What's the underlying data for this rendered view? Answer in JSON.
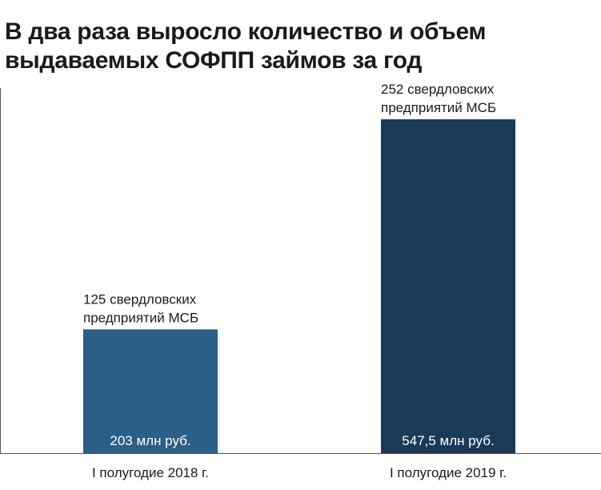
{
  "title": "В два раза выросло количество и объем выдаваемых СОФПП займов за год",
  "chart_data": {
    "type": "bar",
    "title": "В два раза выросло количество и объем выдаваемых СОФПП займов за год",
    "xlabel": "",
    "ylabel": "",
    "categories": [
      "I полугодие 2018 г.",
      "I полугодие 2019 г."
    ],
    "series": [
      {
        "values": [
          203,
          547.5
        ],
        "value_labels": [
          "203 млн руб.",
          "547,5 млн руб."
        ],
        "annotations": [
          [
            "125 свердловских",
            "предприятий МСБ"
          ],
          [
            "252 свердловских",
            "предприятий  МСБ"
          ]
        ]
      }
    ],
    "enterprises": [
      125,
      252
    ],
    "colors": [
      "#2b5f87",
      "#1b3a57"
    ],
    "ylim": [
      0,
      600
    ],
    "grid": false,
    "legend": "none"
  }
}
